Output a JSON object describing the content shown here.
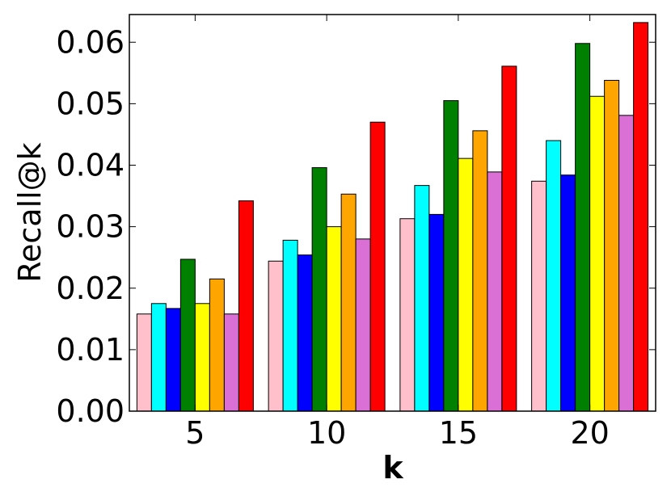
{
  "chart_data": {
    "type": "bar",
    "xlabel": "k",
    "ylabel": "Recall@k",
    "categories": [
      "5",
      "10",
      "15",
      "20"
    ],
    "ylim": [
      0,
      0.0645
    ],
    "yticks": [
      "0.00",
      "0.01",
      "0.02",
      "0.03",
      "0.04",
      "0.05",
      "0.06"
    ],
    "ytick_values": [
      0,
      0.01,
      0.02,
      0.03,
      0.04,
      0.05,
      0.06
    ],
    "grid": false,
    "series": [
      {
        "color": "#ffc0cb",
        "values": [
          0.0158,
          0.0244,
          0.0313,
          0.0374
        ]
      },
      {
        "color": "#00ffff",
        "values": [
          0.0175,
          0.0278,
          0.0367,
          0.044
        ]
      },
      {
        "color": "#0000ff",
        "values": [
          0.0167,
          0.0254,
          0.032,
          0.0384
        ]
      },
      {
        "color": "#008000",
        "values": [
          0.0247,
          0.0396,
          0.0505,
          0.0598
        ]
      },
      {
        "color": "#ffff00",
        "values": [
          0.0175,
          0.03,
          0.0411,
          0.0512
        ]
      },
      {
        "color": "#ffa500",
        "values": [
          0.0215,
          0.0353,
          0.0456,
          0.0538
        ]
      },
      {
        "color": "#da70d6",
        "values": [
          0.0158,
          0.028,
          0.0389,
          0.0481
        ]
      },
      {
        "color": "#ff0000",
        "values": [
          0.0342,
          0.047,
          0.0561,
          0.0632
        ]
      }
    ]
  }
}
